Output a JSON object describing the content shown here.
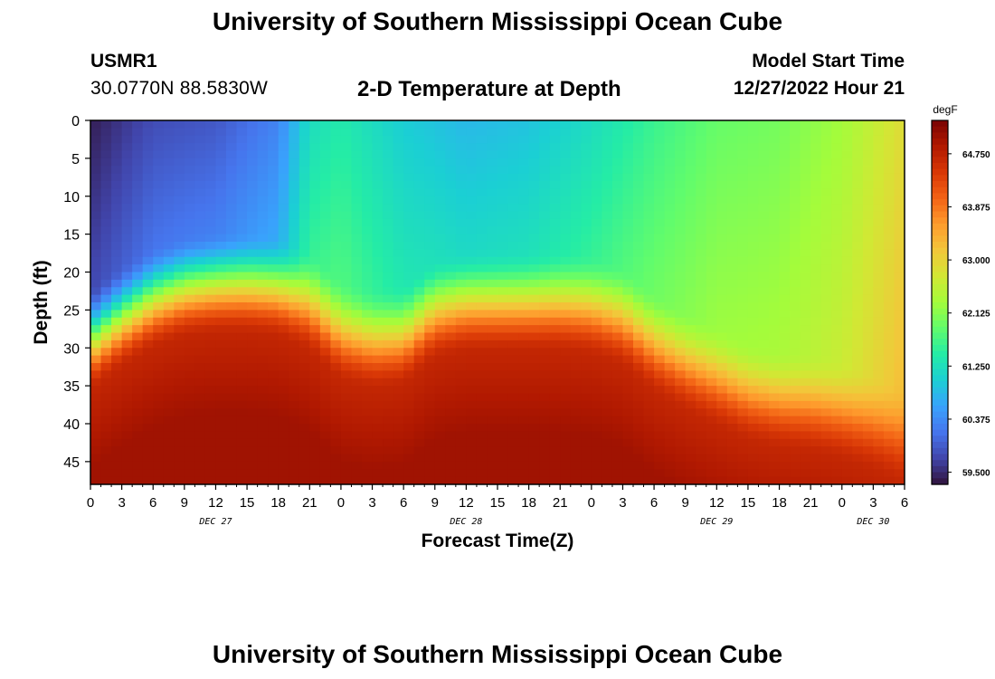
{
  "header": {
    "title": "University of Southern Mississippi Ocean Cube",
    "station": "USMR1",
    "coords": "30.0770N  88.5830W",
    "subtitle": "2-D Temperature at Depth",
    "model_start_label": "Model Start Time",
    "model_start_value": "12/27/2022 Hour 21"
  },
  "footer": {
    "title": "University of Southern Mississippi Ocean Cube"
  },
  "chart_data": {
    "type": "heatmap",
    "title": "2-D Temperature at Depth",
    "xlabel": "Forecast Time(Z)",
    "ylabel": "Depth (ft)",
    "x_range_hours": [
      0,
      78
    ],
    "y_range_ft": [
      0,
      48
    ],
    "x_tick_labels": [
      "0",
      "3",
      "6",
      "9",
      "12",
      "15",
      "18",
      "21",
      "0",
      "3",
      "6",
      "9",
      "12",
      "15",
      "18",
      "21",
      "0",
      "3",
      "6",
      "9",
      "12",
      "15",
      "18",
      "21",
      "0",
      "3",
      "6"
    ],
    "date_labels": [
      {
        "hour": 12,
        "text": "DEC 27"
      },
      {
        "hour": 36,
        "text": "DEC 28"
      },
      {
        "hour": 60,
        "text": "DEC 29"
      },
      {
        "hour": 75,
        "text": "DEC 30"
      }
    ],
    "y_ticks": [
      0,
      5,
      10,
      15,
      20,
      25,
      30,
      35,
      40,
      45
    ],
    "colorbar": {
      "unit": "degF",
      "min": 59.3,
      "max": 65.3,
      "tick_labels": [
        "59.500",
        "60.375",
        "61.250",
        "62.125",
        "63.000",
        "63.875",
        "64.750"
      ],
      "tick_values": [
        59.5,
        60.375,
        61.25,
        62.125,
        63.0,
        63.875,
        64.75
      ],
      "colormap": [
        "#30123b",
        "#4145ab",
        "#4675ed",
        "#39a2fc",
        "#1bcfd4",
        "#24eca6",
        "#61fc6c",
        "#a4fc3b",
        "#d1e834",
        "#f3c63a",
        "#fe9b2d",
        "#f36315",
        "#d93806",
        "#b11901",
        "#7a0403"
      ]
    },
    "thermocline": {
      "hours": [
        0,
        3,
        6,
        9,
        12,
        15,
        18,
        21,
        24,
        27,
        30,
        33,
        36,
        39,
        42,
        45,
        48,
        51,
        54,
        57,
        60,
        63,
        66,
        69,
        72,
        75,
        78
      ],
      "depth_ft": [
        30,
        27,
        24.5,
        23,
        22.5,
        22.5,
        23,
        25,
        29,
        30,
        29.5,
        26,
        25,
        25,
        25,
        25,
        25.5,
        27,
        30.5,
        33,
        35,
        37,
        38,
        38.5,
        39.5,
        41,
        43
      ]
    },
    "surface_temp_degF": {
      "hours": [
        0,
        6,
        12,
        18,
        21,
        24,
        30,
        36,
        42,
        48,
        54,
        60,
        66,
        72,
        78
      ],
      "values": [
        59.4,
        59.8,
        59.9,
        60.3,
        61.2,
        61.4,
        61.0,
        60.8,
        60.9,
        61.2,
        61.6,
        61.9,
        62.0,
        62.3,
        62.9
      ]
    },
    "deep_temp_degF": 65.0
  }
}
